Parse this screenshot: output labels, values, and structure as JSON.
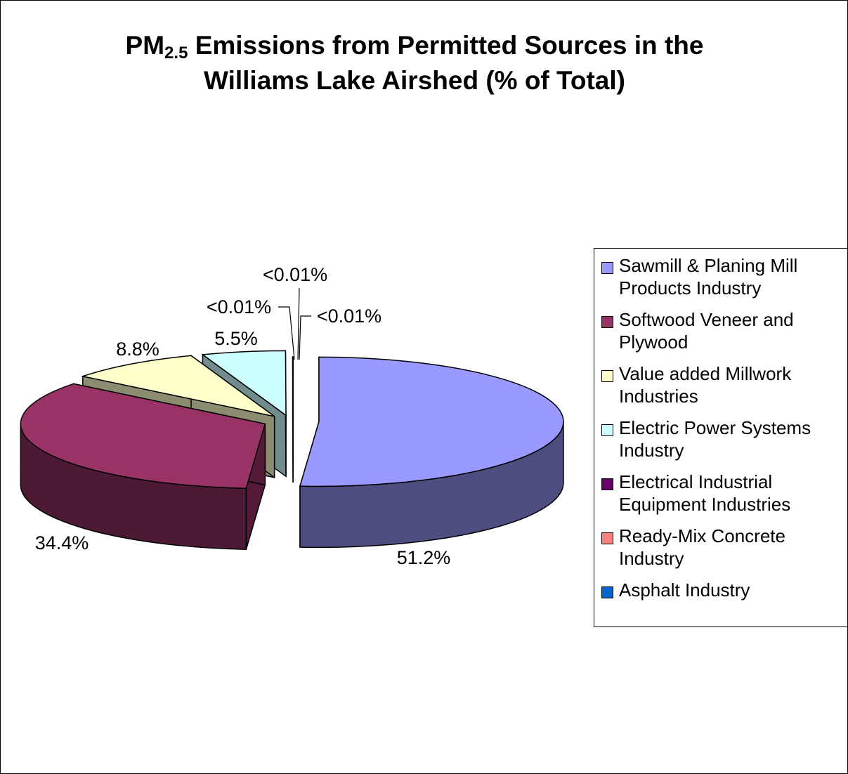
{
  "chart_data": {
    "type": "pie",
    "title_main": "PM",
    "title_sub": "2.5",
    "title_rest": " Emissions from Permitted Sources in the",
    "title_line2": "Williams Lake Airshed (% of Total)",
    "categories": [
      "Sawmill & Planing Mill Products Industry",
      "Softwood Veneer and Plywood",
      "Value added Millwork Industries",
      "Electric Power Systems Industry",
      "Electrical Industrial Equipment Industries",
      "Ready-Mix Concrete Industry",
      "Asphalt Industry"
    ],
    "values": [
      51.2,
      34.4,
      8.8,
      5.5,
      0.01,
      0.01,
      0.01
    ],
    "data_labels": [
      "51.2%",
      "34.4%",
      "8.8%",
      "5.5%",
      "<0.01%",
      "<0.01%",
      "<0.01%"
    ],
    "colors": [
      "#9999ff",
      "#993366",
      "#ffffcc",
      "#ccffff",
      "#660066",
      "#ff8080",
      "#0066cc"
    ],
    "legend_position": "right",
    "exploded": true,
    "three_d": true
  }
}
